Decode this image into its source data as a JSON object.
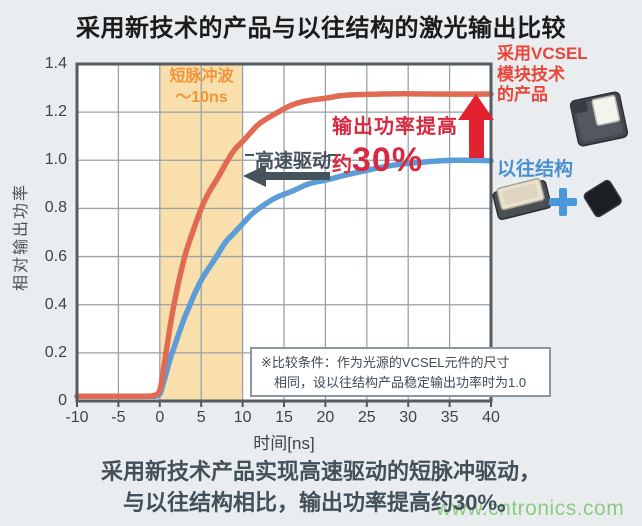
{
  "title": "采用新技术的产品与以往结构的激光输出比较",
  "chart_data": {
    "type": "line",
    "title": "采用新技术的产品与以往结构的激光输出比较",
    "xlabel": "时间[ns]",
    "ylabel": "相对输出功率",
    "xlim": [
      -10,
      40
    ],
    "ylim": [
      0,
      1.4
    ],
    "grid": true,
    "x_ticks": [
      -10,
      -5,
      0,
      5,
      10,
      15,
      20,
      25,
      30,
      35,
      40
    ],
    "x_tick_labels": [
      "-10",
      "-5",
      "0",
      "5",
      "10",
      "15",
      "20",
      "25",
      "30",
      "35",
      "40"
    ],
    "y_ticks": [
      0,
      0.2,
      0.4,
      0.6,
      0.8,
      1.0,
      1.2,
      1.4
    ],
    "y_tick_labels": [
      "0",
      "0.2",
      "0.4",
      "0.6",
      "0.8",
      "1.0",
      "1.2",
      "1.4"
    ],
    "band": {
      "x0": 0,
      "x1": 10,
      "label": "短脉冲波 ～10ns",
      "color": "#f9dfab"
    },
    "x": [
      -10,
      -5,
      -2,
      -1,
      0,
      0.4,
      0.8,
      1.2,
      1.6,
      2,
      2.5,
      3,
      3.5,
      4,
      5,
      6,
      7,
      8,
      9,
      10,
      11,
      12,
      14,
      16,
      18,
      20,
      22,
      25,
      28,
      31,
      34,
      37,
      40
    ],
    "series": [
      {
        "name": "采用VCSEL模块技术的产品",
        "color": "#e16a52",
        "values": [
          0.02,
          0.02,
          0.02,
          0.02,
          0.03,
          0.12,
          0.21,
          0.3,
          0.38,
          0.45,
          0.53,
          0.6,
          0.66,
          0.71,
          0.8,
          0.87,
          0.93,
          0.99,
          1.04,
          1.08,
          1.12,
          1.15,
          1.2,
          1.23,
          1.25,
          1.26,
          1.265,
          1.27,
          1.275,
          1.278,
          1.28,
          1.28,
          1.28
        ]
      },
      {
        "name": "以往结构",
        "color": "#5b9dd8",
        "values": [
          0.02,
          0.02,
          0.02,
          0.02,
          0.02,
          0.07,
          0.12,
          0.17,
          0.21,
          0.25,
          0.3,
          0.35,
          0.39,
          0.43,
          0.5,
          0.56,
          0.61,
          0.66,
          0.7,
          0.74,
          0.77,
          0.8,
          0.845,
          0.875,
          0.9,
          0.92,
          0.935,
          0.955,
          0.975,
          0.985,
          0.995,
          1.0,
          1.0
        ]
      }
    ],
    "legend_position": "right"
  },
  "annotations": {
    "band_label_line1": "短脉冲波",
    "band_label_line2": "～10ns",
    "speed_label": "高速驱动",
    "power_label_line1": "输出功率提高",
    "power_label_prefix": "约",
    "power_label_value": "30%",
    "note_line1": "※比较条件：作为光源的VCSEL元件的尺寸",
    "note_line2": "相同，设以往结构产品稳定输出功率时为1.0"
  },
  "axis": {
    "y_title": "相对输出功率",
    "x_title": "时间[ns]"
  },
  "legend": {
    "new_lines": [
      "采用VCSEL",
      "模块技术",
      "的产品"
    ],
    "old_label": "以往结构",
    "icons": [
      "vcsel-module-img",
      "legacy-module-img",
      "plus-icon",
      "legacy-chip-img"
    ]
  },
  "caption": {
    "line1": "采用新技术产品实现高速驱动的短脉冲驱动，",
    "line2": "与以往结构相比，输出功率提高约30%。"
  },
  "watermark": "www.cntronics.com",
  "colors": {
    "background": "#e9edf0",
    "plot_background": "#ffffff",
    "new_curve": "#e16a52",
    "old_curve": "#5b9dd8",
    "band_fill": "#f9dfab",
    "band_label": "#f0953c",
    "annotation_red": "#d7293f",
    "arrow_red": "#e32230",
    "arrow_gray": "#46525c",
    "legend_new_text": "#e8453a",
    "legend_old_text": "#4a90d0",
    "watermark_green": "#7ec46f"
  }
}
